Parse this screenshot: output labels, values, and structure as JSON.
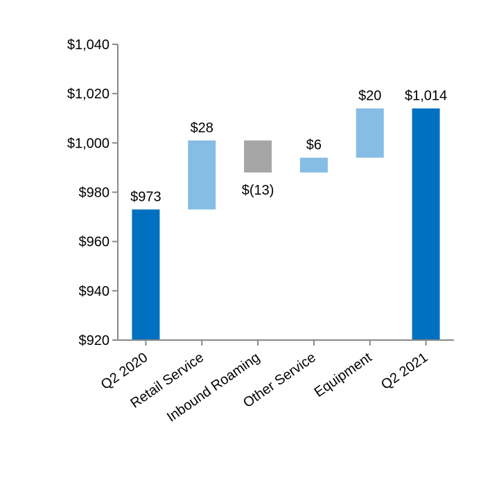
{
  "chart_data": {
    "type": "waterfall",
    "title": "",
    "xlabel": "",
    "ylabel": "",
    "ylim": [
      920,
      1040
    ],
    "y_ticks": [
      920,
      940,
      960,
      980,
      1000,
      1020,
      1040
    ],
    "y_tick_labels": [
      "$920",
      "$940",
      "$960",
      "$980",
      "$1,000",
      "$1,020",
      "$1,040"
    ],
    "categories": [
      "Q2 2020",
      "Retail Service",
      "Inbound Roaming",
      "Other Service",
      "Equipment",
      "Q2 2021"
    ],
    "bars": [
      {
        "category": "Q2 2020",
        "kind": "total",
        "start": 920,
        "end": 973,
        "label": "$973",
        "color": "#0070c0"
      },
      {
        "category": "Retail Service",
        "kind": "increase",
        "start": 973,
        "end": 1001,
        "label": "$28",
        "color": "#85bde4"
      },
      {
        "category": "Inbound Roaming",
        "kind": "decrease",
        "start": 1001,
        "end": 988,
        "label": "$(13)",
        "color": "#a6a6a6"
      },
      {
        "category": "Other Service",
        "kind": "increase",
        "start": 988,
        "end": 994,
        "label": "$6",
        "color": "#85bde4"
      },
      {
        "category": "Equipment",
        "kind": "increase",
        "start": 994,
        "end": 1014,
        "label": "$20",
        "color": "#85bde4"
      },
      {
        "category": "Q2 2021",
        "kind": "total",
        "start": 920,
        "end": 1014,
        "label": "$1,014",
        "color": "#0070c0"
      }
    ],
    "grid": false,
    "legend": "none"
  }
}
